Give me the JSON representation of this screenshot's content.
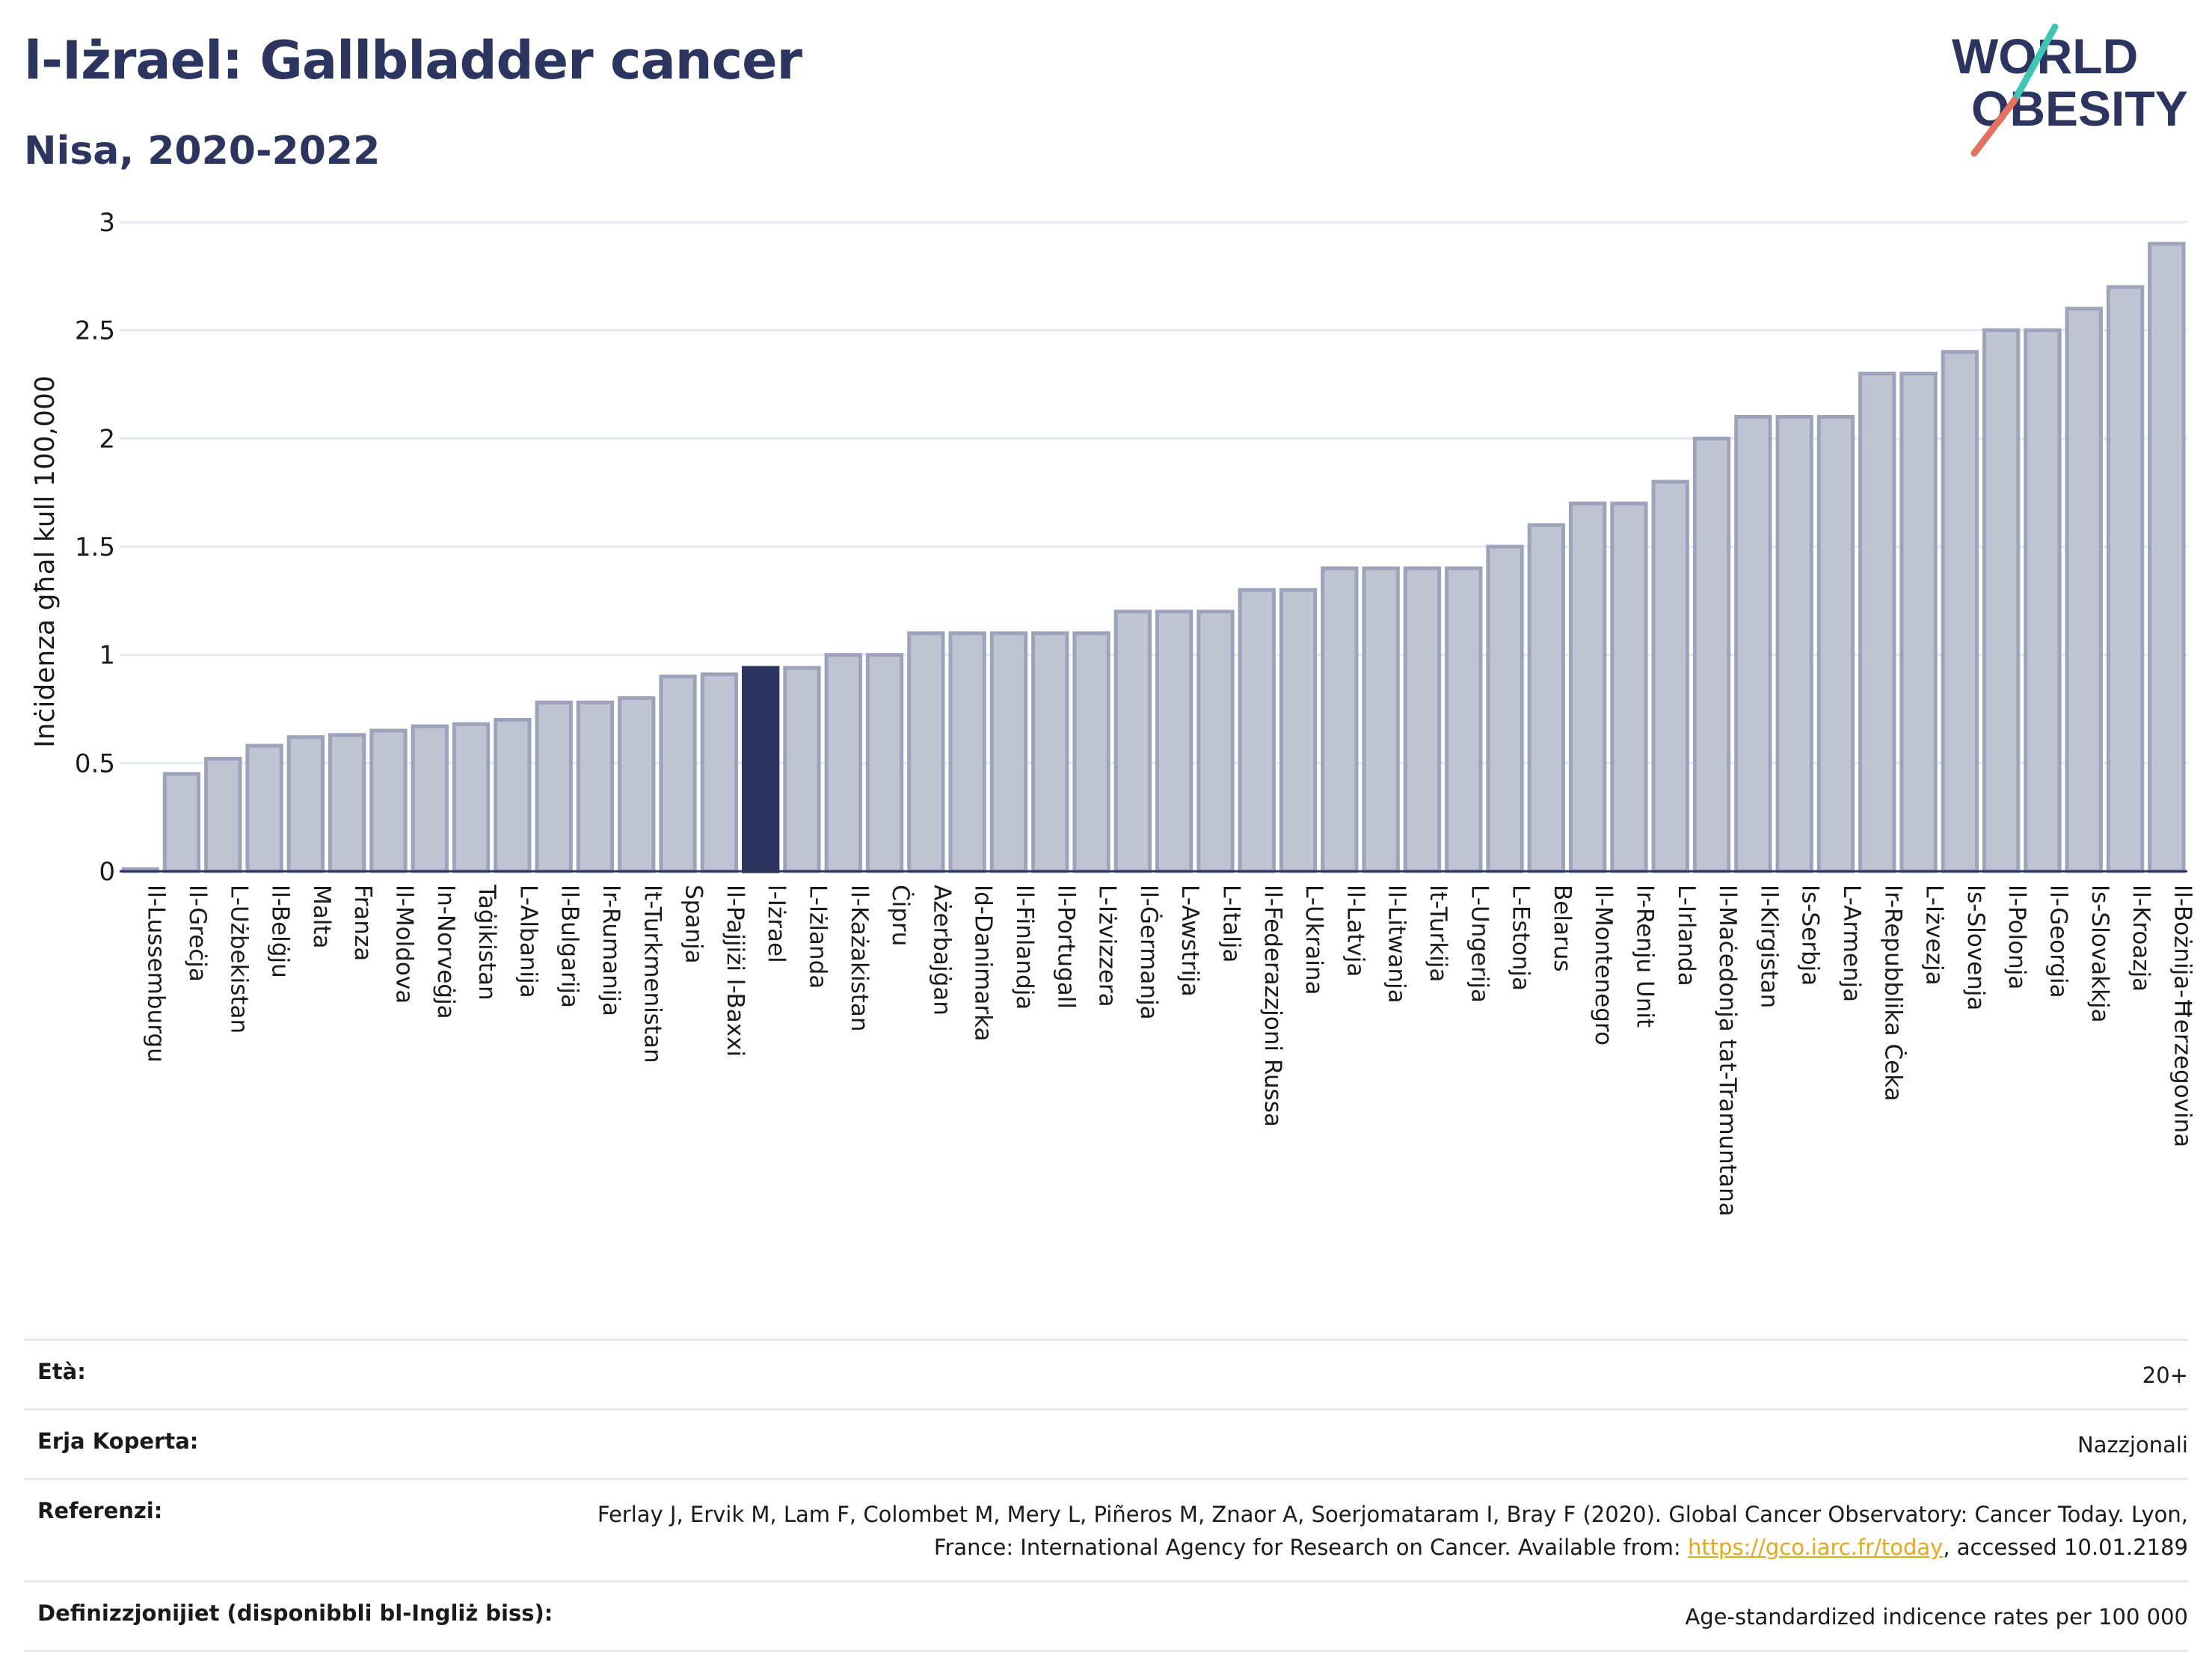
{
  "header": {
    "title": "l-Iżrael: Gallbladder cancer",
    "subtitle": "Nisa, 2020-2022"
  },
  "logo": {
    "line1": "WORLD",
    "line2": "OBESITY",
    "accent_colors": [
      "#3ec6b5",
      "#e4705e"
    ]
  },
  "colors": {
    "bar": "#c0c4d2",
    "bar_stroke": "#9ea3bb",
    "highlight": "#2b3560",
    "grid": "#e6e8ef",
    "text": "#2b3560"
  },
  "chart_data": {
    "type": "bar",
    "title": "l-Iżrael: Gallbladder cancer",
    "subtitle": "Nisa, 2020-2022",
    "ylabel": "Inċidenza għal kull 100,000",
    "xlabel": "",
    "ylim": [
      0,
      3
    ],
    "yticks": [
      "0",
      "0.5",
      "1",
      "1.5",
      "2",
      "2.5",
      "3"
    ],
    "grid": true,
    "highlight": "l-Iżrael",
    "categories": [
      "Il-Lussemburgu",
      "Il-Greċja",
      "L-Użbekistan",
      "Il-Belġju",
      "Malta",
      "Franza",
      "Il-Moldova",
      "In-Norveġja",
      "Taġikistan",
      "L-Albanija",
      "Il-Bulgarija",
      "Ir-Rumanija",
      "It-Turkmenistan",
      "Spanja",
      "Il-Pajjiżi l-Baxxi",
      "l-Iżrael",
      "L-Iżlanda",
      "Il-Każakistan",
      "Ċipru",
      "Ażerbajġan",
      "Id-Danimarka",
      "Il-Finlandja",
      "Il-Portugall",
      "L-Iżvizzera",
      "Il-Ġermanja",
      "L-Awstrija",
      "L-Italja",
      "Il-Federazzjoni Russa",
      "L-Ukraina",
      "Il-Latvja",
      "Il-Litwanja",
      "It-Turkija",
      "L-Ungerija",
      "L-Estonja",
      "Belarus",
      "Il-Montenegro",
      "Ir-Renju Unit",
      "L-Irlanda",
      "Il-Maċedonja tat-Tramuntana",
      "Il-Kirgistan",
      "Is-Serbja",
      "L-Armenja",
      "Ir-Repubblika Ċeka",
      "L-Iżvezja",
      "Is-Slovenja",
      "Il-Polonja",
      "Il-Georgia",
      "Is-Slovakkja",
      "Il-Kroazja",
      "Il-Bożnija-Ħerzegovina"
    ],
    "values": [
      0.01,
      0.45,
      0.52,
      0.58,
      0.62,
      0.63,
      0.65,
      0.67,
      0.68,
      0.7,
      0.78,
      0.78,
      0.8,
      0.9,
      0.91,
      0.94,
      0.94,
      1.0,
      1.0,
      1.1,
      1.1,
      1.1,
      1.1,
      1.1,
      1.2,
      1.2,
      1.2,
      1.3,
      1.3,
      1.4,
      1.4,
      1.4,
      1.4,
      1.5,
      1.6,
      1.7,
      1.7,
      1.8,
      2.0,
      2.1,
      2.1,
      2.1,
      2.3,
      2.3,
      2.4,
      2.5,
      2.5,
      2.6,
      2.7,
      2.9
    ]
  },
  "info": {
    "age_label": "Età:",
    "age_value": "20+",
    "coverage_label": "Erja Koperta:",
    "coverage_value": "Nazzjonali",
    "references_label": "Referenzi:",
    "references_text_1": "Ferlay J, Ervik M, Lam F, Colombet M, Mery L, Piñeros M, Znaor A, Soerjomataram I, Bray F (2020). Global Cancer Observatory: Cancer Today. Lyon, France: International Agency for Research on Cancer. Available from: ",
    "references_link": "https://gco.iarc.fr/today",
    "references_text_2": ", accessed 10.01.2189",
    "definitions_label": "Definizzjonijiet (disponibbli bl-Ingliż biss):",
    "definitions_value": "Age-standardized indicence rates per 100 000"
  }
}
